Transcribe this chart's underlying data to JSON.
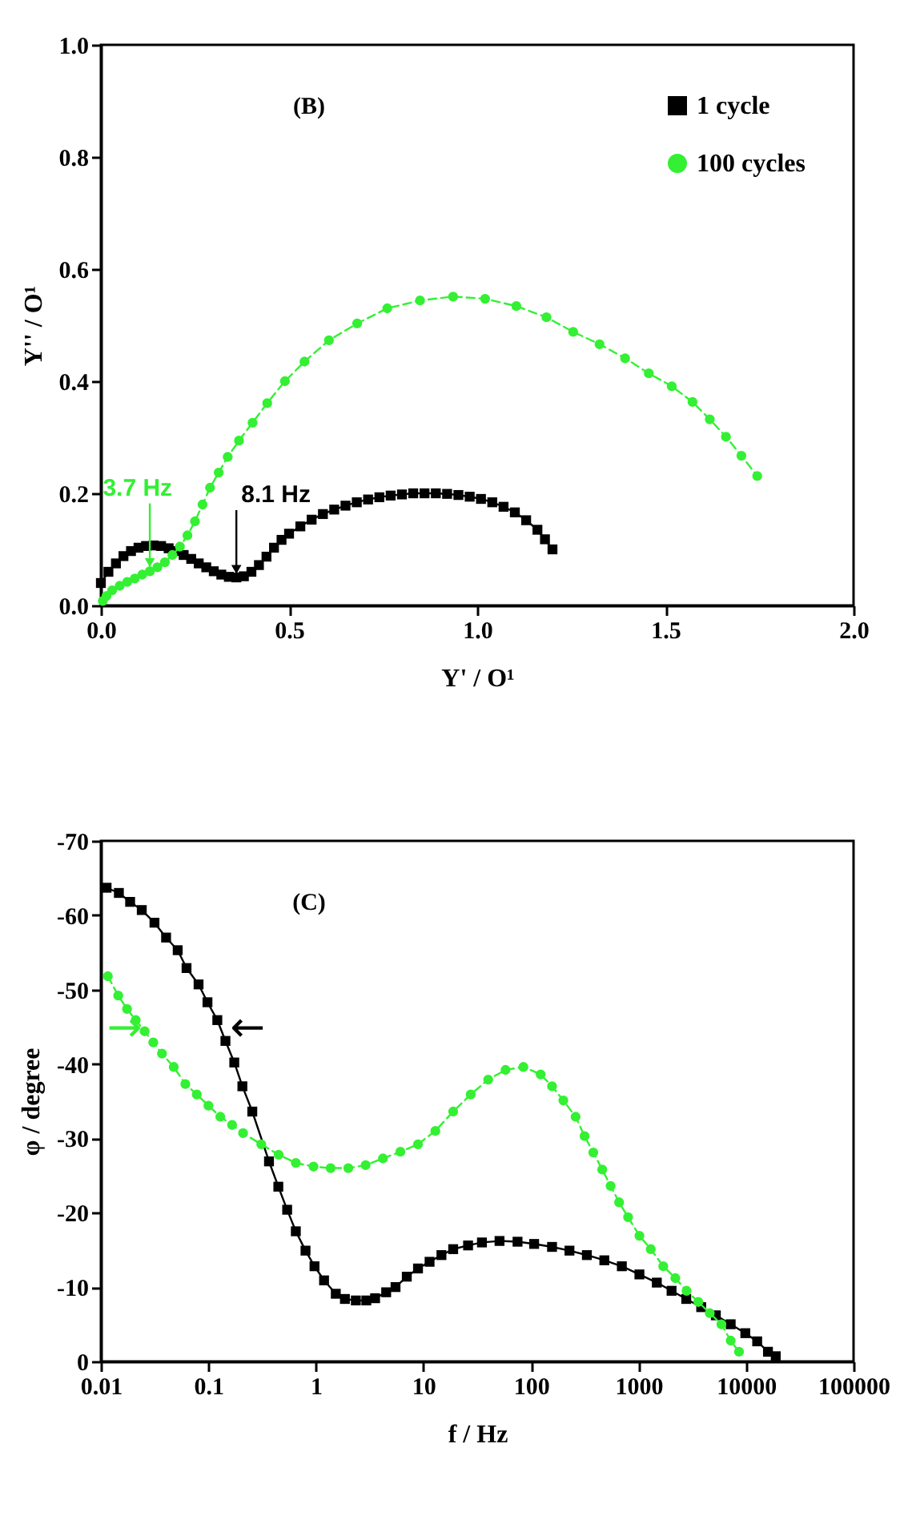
{
  "chart_data": [
    {
      "type": "line",
      "xlabel": "Y' / O¹",
      "ylabel": "Y'' / O¹",
      "xlim": [
        0,
        2
      ],
      "ylim": [
        0,
        1
      ],
      "xticks": [
        {
          "value": 0,
          "label": "0.0"
        },
        {
          "value": 0.5,
          "label": "0.5"
        },
        {
          "value": 1,
          "label": "1.0"
        },
        {
          "value": 1.5,
          "label": "1.5"
        },
        {
          "value": 2,
          "label": "2.0"
        }
      ],
      "yticks": [
        {
          "value": 0,
          "label": "0.0"
        },
        {
          "value": 0.2,
          "label": "0.2"
        },
        {
          "value": 0.4,
          "label": "0.4"
        },
        {
          "value": 0.6,
          "label": "0.6"
        },
        {
          "value": 0.8,
          "label": "0.8"
        },
        {
          "value": 1,
          "label": "1.0"
        }
      ],
      "legend": "top right",
      "grid": false,
      "annotations": [
        "(B)",
        {
          "text": "8.1 Hz",
          "x": 0.36,
          "y": 0.05
        },
        {
          "text": "3.7 Hz",
          "x": 0.13,
          "y": 0.062
        }
      ],
      "series": [
        {
          "name": "1 cycle",
          "color": "#000000",
          "marker": "square",
          "line_style": "solid",
          "x": [
            0,
            0.02,
            0.04,
            0.06,
            0.08,
            0.1,
            0.12,
            0.14,
            0.16,
            0.18,
            0.2,
            0.22,
            0.24,
            0.26,
            0.28,
            0.3,
            0.32,
            0.34,
            0.36,
            0.38,
            0.4,
            0.42,
            0.44,
            0.46,
            0.48,
            0.5,
            0.53,
            0.56,
            0.59,
            0.62,
            0.65,
            0.68,
            0.71,
            0.74,
            0.77,
            0.8,
            0.83,
            0.86,
            0.89,
            0.92,
            0.95,
            0.98,
            1.01,
            1.04,
            1.07,
            1.1,
            1.13,
            1.16,
            1.18,
            1.2
          ],
          "values": [
            0.04,
            0.06,
            0.075,
            0.088,
            0.097,
            0.103,
            0.106,
            0.107,
            0.106,
            0.102,
            0.097,
            0.09,
            0.083,
            0.075,
            0.068,
            0.061,
            0.055,
            0.051,
            0.05,
            0.052,
            0.06,
            0.072,
            0.087,
            0.103,
            0.117,
            0.128,
            0.141,
            0.153,
            0.163,
            0.171,
            0.178,
            0.184,
            0.189,
            0.193,
            0.196,
            0.198,
            0.2,
            0.2,
            0.2,
            0.199,
            0.197,
            0.194,
            0.19,
            0.184,
            0.176,
            0.166,
            0.152,
            0.135,
            0.118,
            0.1
          ]
        },
        {
          "name": "100 cycles",
          "color": "#33f033",
          "marker": "circle",
          "line_style": "dashed",
          "x": [
            0.005,
            0.015,
            0.03,
            0.05,
            0.07,
            0.09,
            0.11,
            0.13,
            0.15,
            0.17,
            0.19,
            0.21,
            0.23,
            0.25,
            0.27,
            0.29,
            0.313,
            0.337,
            0.367,
            0.403,
            0.442,
            0.489,
            0.541,
            0.606,
            0.681,
            0.761,
            0.848,
            0.936,
            1.021,
            1.104,
            1.184,
            1.255,
            1.325,
            1.393,
            1.456,
            1.517,
            1.572,
            1.618,
            1.661,
            1.702,
            1.744
          ],
          "values": [
            0.008,
            0.017,
            0.027,
            0.035,
            0.042,
            0.048,
            0.055,
            0.061,
            0.068,
            0.077,
            0.09,
            0.105,
            0.125,
            0.15,
            0.18,
            0.21,
            0.237,
            0.265,
            0.294,
            0.326,
            0.361,
            0.4,
            0.435,
            0.473,
            0.503,
            0.53,
            0.544,
            0.551,
            0.547,
            0.534,
            0.514,
            0.488,
            0.466,
            0.441,
            0.414,
            0.391,
            0.363,
            0.332,
            0.301,
            0.267,
            0.231
          ]
        }
      ]
    },
    {
      "type": "line",
      "xlabel": "f / Hz",
      "ylabel": "φ / degree",
      "log": "x",
      "xlim": [
        0.01,
        100000
      ],
      "ylim": [
        0,
        -70
      ],
      "xticks": [
        0.01,
        0.1,
        1,
        10,
        100,
        1000,
        10000,
        100000
      ],
      "yticks": [
        0,
        -10,
        -20,
        -30,
        -40,
        -50,
        -60,
        -70
      ],
      "legend": "top right",
      "grid": false,
      "annotations": [
        "(C)",
        {
          "text": "←",
          "x": 0.13,
          "y": -45
        },
        {
          "text": "→",
          "x": 0.025,
          "y": -45
        }
      ],
      "series": [
        {
          "name": "1 cycle",
          "color": "#000000",
          "marker": "square",
          "line_style": "solid",
          "x": [
            0.0113,
            0.0147,
            0.0187,
            0.024,
            0.0315,
            0.0404,
            0.0518,
            0.0626,
            0.081,
            0.098,
            0.121,
            0.144,
            0.174,
            0.207,
            0.256,
            0.366,
            0.447,
            0.54,
            0.65,
            0.8,
            0.97,
            1.19,
            1.53,
            1.86,
            2.35,
            2.94,
            3.55,
            4.5,
            5.5,
            7,
            8.9,
            11.4,
            14.7,
            18.9,
            26,
            35,
            51,
            75,
            107,
            157,
            228,
            331,
            481,
            700,
            1020,
            1480,
            2030,
            2780,
            3830,
            5240,
            7200,
            9850,
            12700,
            16000,
            18900
          ],
          "values": [
            -63.7,
            -63,
            -61.8,
            -60.7,
            -59,
            -57,
            -55.3,
            -52.9,
            -50.7,
            -48.3,
            -45.9,
            -43.1,
            -40.2,
            -37,
            -33.6,
            -26.9,
            -23.5,
            -20.4,
            -17.5,
            -14.9,
            -12.8,
            -10.9,
            -9.1,
            -8.4,
            -8.2,
            -8.2,
            -8.5,
            -9.3,
            -10,
            -11.4,
            -12.5,
            -13.4,
            -14.3,
            -15.1,
            -15.6,
            -16,
            -16.2,
            -16.1,
            -15.8,
            -15.4,
            -14.9,
            -14.3,
            -13.6,
            -12.8,
            -11.7,
            -10.6,
            -9.5,
            -8.4,
            -7.3,
            -6.2,
            -5,
            -3.8,
            -2.7,
            -1.3,
            -0.7
          ]
        },
        {
          "name": "100 cycles",
          "color": "#33f033",
          "marker": "circle",
          "line_style": "dashed",
          "x": [
            0.0116,
            0.0145,
            0.0175,
            0.0211,
            0.0255,
            0.0307,
            0.037,
            0.0476,
            0.061,
            0.078,
            0.1,
            0.129,
            0.166,
            0.21,
            0.31,
            0.45,
            0.65,
            0.95,
            1.37,
            2,
            2.9,
            4.2,
            6.1,
            8.9,
            12.9,
            18.9,
            27.5,
            40,
            58,
            85,
            123,
            157,
            200,
            260,
            315,
            380,
            460,
            550,
            660,
            800,
            1020,
            1300,
            1700,
            2200,
            2800,
            3600,
            4600,
            5900,
            7200,
            8600
          ],
          "values": [
            -51.8,
            -49.2,
            -47.4,
            -45.9,
            -44.4,
            -42.9,
            -41.4,
            -39.6,
            -37.3,
            -35.9,
            -34.4,
            -32.9,
            -31.8,
            -30.7,
            -29.2,
            -27.8,
            -26.7,
            -26.2,
            -26,
            -26,
            -26.4,
            -27.3,
            -28.2,
            -29.2,
            -31,
            -33.6,
            -35.9,
            -37.9,
            -39.2,
            -39.6,
            -38.6,
            -37,
            -35.1,
            -32.9,
            -30.3,
            -28.1,
            -25.8,
            -23.6,
            -21.4,
            -19.4,
            -16.9,
            -15.1,
            -12.8,
            -11.2,
            -9.5,
            -8,
            -6.5,
            -5,
            -2.8,
            -1.3
          ]
        }
      ]
    }
  ]
}
